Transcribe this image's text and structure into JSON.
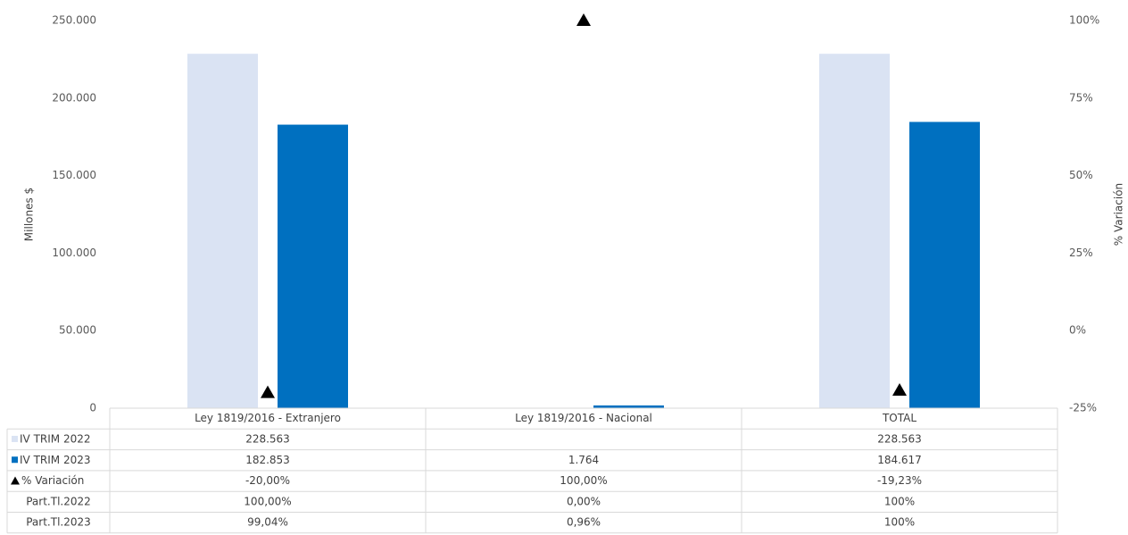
{
  "chart_data": {
    "type": "bar",
    "categories": [
      "Ley 1819/2016 - Extranjero",
      "Ley 1819/2016 - Nacional",
      "TOTAL"
    ],
    "series": [
      {
        "name": "IV TRIM 2022",
        "color": "#dae3f3",
        "values": [
          228563,
          null,
          228563
        ],
        "value_labels": [
          "228.563",
          null,
          "228.563"
        ]
      },
      {
        "name": "IV TRIM 2023",
        "color": "#0070c0",
        "values": [
          182853,
          1764,
          184617
        ],
        "value_labels": [
          "182.853",
          "1.764",
          "184.617"
        ]
      },
      {
        "name": "% Variación",
        "color": "#000000",
        "axis": "y2",
        "marker": "triangle",
        "values": [
          -20,
          100,
          -19.23
        ],
        "value_labels": [
          "-20,00%",
          "100,00%",
          "-19,23%"
        ]
      }
    ],
    "table_rows": [
      {
        "name": "Part.Tl.2022",
        "cells": [
          "100,00%",
          "0,00%",
          "100%"
        ]
      },
      {
        "name": "Part.Tl.2023",
        "cells": [
          "99,04%",
          "0,96%",
          "100%"
        ]
      }
    ],
    "ylabel": "Millones $",
    "y2label": "% Variación",
    "ylim": [
      0,
      250000
    ],
    "yticks": [
      {
        "value": 0,
        "label": "0"
      },
      {
        "value": 50000,
        "label": "50.000"
      },
      {
        "value": 100000,
        "label": "100.000"
      },
      {
        "value": 150000,
        "label": "150.000"
      },
      {
        "value": 200000,
        "label": "200.000"
      },
      {
        "value": 250000,
        "label": "250.000"
      }
    ],
    "y2lim": [
      -25,
      100
    ],
    "y2ticks": [
      {
        "value": -25,
        "label": "-25%"
      },
      {
        "value": 0,
        "label": "0%"
      },
      {
        "value": 25,
        "label": "25%"
      },
      {
        "value": 50,
        "label": "50%"
      },
      {
        "value": 75,
        "label": "75%"
      },
      {
        "value": 100,
        "label": "100%"
      }
    ]
  }
}
